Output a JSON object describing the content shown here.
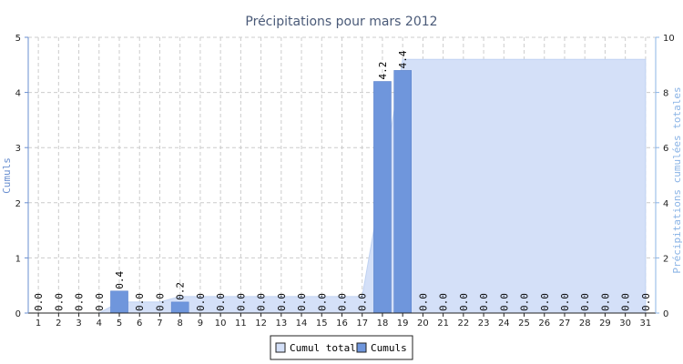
{
  "chart_data": {
    "type": "bar",
    "title": "Précipitations pour mars 2012",
    "ylabel": "Cumuls",
    "ylabel_right": "Précipitations cumulées totales",
    "ylim": [
      0,
      5
    ],
    "ylim_right": [
      0,
      10
    ],
    "yticks": [
      "0",
      "1",
      "2",
      "3",
      "4",
      "5"
    ],
    "yticks_right": [
      "0",
      "2",
      "4",
      "6",
      "8",
      "10"
    ],
    "grid": true,
    "legend_position": "bottom-center",
    "categories": [
      "1",
      "2",
      "3",
      "4",
      "5",
      "6",
      "7",
      "8",
      "9",
      "10",
      "11",
      "12",
      "13",
      "14",
      "15",
      "16",
      "17",
      "18",
      "19",
      "20",
      "21",
      "22",
      "23",
      "24",
      "25",
      "26",
      "27",
      "28",
      "29",
      "30",
      "31"
    ],
    "series": [
      {
        "name": "Cumul total",
        "type": "area",
        "axis": "right",
        "color": "#d4e0f8",
        "edge_color": "#c0d2f2",
        "values": [
          0.0,
          0.0,
          0.0,
          0.0,
          0.4,
          0.4,
          0.4,
          0.6,
          0.6,
          0.6,
          0.6,
          0.6,
          0.6,
          0.6,
          0.6,
          0.6,
          0.6,
          4.8,
          9.2,
          9.2,
          9.2,
          9.2,
          9.2,
          9.2,
          9.2,
          9.2,
          9.2,
          9.2,
          9.2,
          9.2,
          9.2
        ]
      },
      {
        "name": "Cumuls",
        "type": "bar",
        "axis": "left",
        "color": "#6f96dc",
        "values": [
          0.0,
          0.0,
          0.0,
          0.0,
          0.4,
          0.0,
          0.0,
          0.2,
          0.0,
          0.0,
          0.0,
          0.0,
          0.0,
          0.0,
          0.0,
          0.0,
          0.0,
          4.2,
          4.4,
          0.0,
          0.0,
          0.0,
          0.0,
          0.0,
          0.0,
          0.0,
          0.0,
          0.0,
          0.0,
          0.0,
          0.0
        ],
        "labels": [
          "0.0",
          "0.0",
          "0.0",
          "0.0",
          "0.4",
          "0.0",
          "0.0",
          "0.2",
          "0.0",
          "0.0",
          "0.0",
          "0.0",
          "0.0",
          "0.0",
          "0.0",
          "0.0",
          "0.0",
          "4.2",
          "4.4",
          "0.0",
          "0.0",
          "0.0",
          "0.0",
          "0.0",
          "0.0",
          "0.0",
          "0.0",
          "0.0",
          "0.0",
          "0.0",
          "0.0"
        ]
      }
    ]
  },
  "legend": {
    "items": [
      {
        "label": "Cumul total",
        "color": "#d4e0f8"
      },
      {
        "label": "Cumuls",
        "color": "#6f96dc"
      }
    ]
  }
}
